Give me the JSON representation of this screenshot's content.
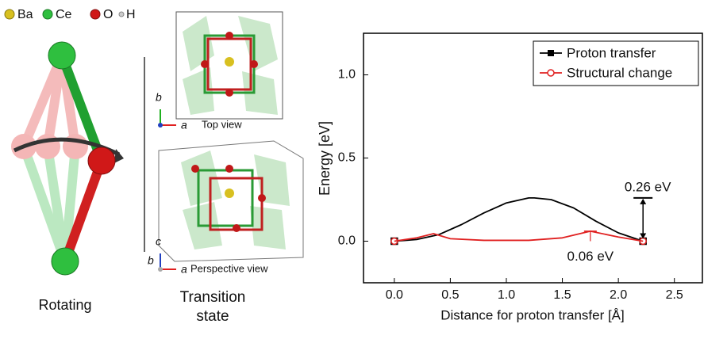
{
  "figure": {
    "legend": [
      "Ba",
      "Ce",
      "O",
      "H"
    ],
    "rotating": "Rotating",
    "ts_line1": "Transition",
    "ts_line2": "state",
    "top_view": "Top view",
    "perspective_view": "Perspective view",
    "axis_a": "a",
    "axis_b": "b",
    "axis_c": "c"
  },
  "chart_data": {
    "type": "line",
    "xlabel": "Distance for proton transfer [Å]",
    "ylabel": "Energy [eV]",
    "xlim": [
      -0.275,
      2.75
    ],
    "ylim": [
      -0.25,
      1.25
    ],
    "xticks": [
      {
        "value": 0,
        "label": "0.0"
      },
      {
        "value": 0.5,
        "label": "0.5"
      },
      {
        "value": 1,
        "label": "1.0"
      },
      {
        "value": 1.5,
        "label": "1.5"
      },
      {
        "value": 2,
        "label": "2.0"
      },
      {
        "value": 2.5,
        "label": "2.5"
      }
    ],
    "yticks": [
      {
        "value": 0,
        "label": "0.0"
      },
      {
        "value": 0.5,
        "label": "0.5"
      },
      {
        "value": 1,
        "label": "1.0"
      }
    ],
    "legend_position": "upper right",
    "series": [
      {
        "name": "Proton transfer",
        "color": "#000000",
        "marker": "square",
        "x": [
          0,
          0.2,
          0.4,
          0.6,
          0.8,
          1.0,
          1.2,
          1.25,
          1.4,
          1.6,
          1.8,
          2.0,
          2.22
        ],
        "values": [
          0,
          0.01,
          0.04,
          0.1,
          0.17,
          0.23,
          0.26,
          0.26,
          0.25,
          0.2,
          0.12,
          0.05,
          0
        ]
      },
      {
        "name": "Structural change",
        "color": "#e02020",
        "marker": "circle",
        "x": [
          0,
          0.2,
          0.35,
          0.5,
          0.8,
          1.2,
          1.5,
          1.75,
          2.0,
          2.22
        ],
        "values": [
          0,
          0.02,
          0.045,
          0.015,
          0.005,
          0.005,
          0.02,
          0.06,
          0.025,
          0
        ]
      }
    ],
    "annotations": [
      {
        "text": "0.26 eV",
        "color": "#000000",
        "x": 2.22,
        "y": 0.26
      },
      {
        "text": "0.06 eV",
        "color": "#e02020",
        "x": 1.75,
        "y": 0.06
      }
    ]
  }
}
